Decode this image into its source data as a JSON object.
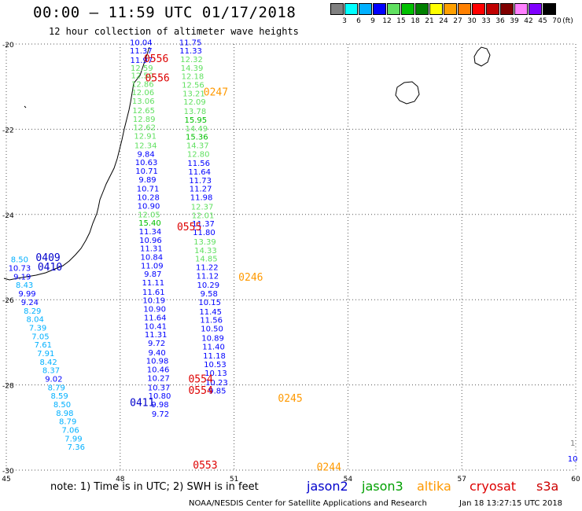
{
  "header": {
    "title": "00:00 — 11:59 UTC 01/17/2018",
    "subtitle": "12 hour collection of altimeter wave heights"
  },
  "colorbar": {
    "unit": "(ft)",
    "colors": [
      "#808080",
      "#00ffff",
      "#00b0ff",
      "#0000ff",
      "#60e060",
      "#00c000",
      "#008000",
      "#ffff00",
      "#ffa000",
      "#ff8000",
      "#ff0000",
      "#c00000",
      "#800000",
      "#ff80ff",
      "#8000ff",
      "#000000"
    ],
    "labels": [
      "3",
      "6",
      "9",
      "12",
      "15",
      "18",
      "21",
      "24",
      "27",
      "30",
      "33",
      "36",
      "39",
      "42",
      "45",
      "70"
    ]
  },
  "axes": {
    "lat_labels": [
      {
        "lat": -20,
        "text": "-20"
      },
      {
        "lat": -22,
        "text": "-22"
      },
      {
        "lat": -24,
        "text": "-24"
      },
      {
        "lat": -26,
        "text": "-26"
      },
      {
        "lat": -28,
        "text": "-28"
      },
      {
        "lat": -30,
        "text": "-30"
      }
    ],
    "lon_labels": [
      {
        "lon": 45,
        "text": "45"
      },
      {
        "lon": 48,
        "text": "48"
      },
      {
        "lon": 51,
        "text": "51"
      },
      {
        "lon": 54,
        "text": "54"
      },
      {
        "lon": 57,
        "text": "57"
      },
      {
        "lon": 60,
        "text": "60"
      }
    ],
    "lat_range": [
      -30,
      -20
    ],
    "lon_range": [
      45,
      60
    ]
  },
  "footer": {
    "note": "note:  1) Time is in UTC;  2) SWH is in feet",
    "credit": "NOAA/NESDIS Center for Satellite Applications and Research",
    "timestamp": "Jan 18 13:27:15 UTC 2018",
    "legend": [
      {
        "name": "jason2",
        "color": "#0000cc"
      },
      {
        "name": "jason3",
        "color": "#00a000"
      },
      {
        "name": "altika",
        "color": "#ff9900"
      },
      {
        "name": "cryosat",
        "color": "#dd0000"
      },
      {
        "name": "s3a",
        "color": "#cc0000"
      }
    ]
  },
  "chart_data": {
    "type": "scatter",
    "tracks": [
      {
        "name": "track-a",
        "points": [
          {
            "lon": 48.55,
            "lat": -19.95,
            "v": "10.04"
          },
          {
            "lon": 48.55,
            "lat": -20.15,
            "v": "11.37"
          },
          {
            "lon": 48.56,
            "lat": -20.37,
            "v": "11.97"
          },
          {
            "lon": 48.57,
            "lat": -20.55,
            "v": "12.59"
          },
          {
            "lon": 48.58,
            "lat": -20.73,
            "v": "12.50"
          },
          {
            "lon": 48.59,
            "lat": -20.93,
            "v": "12.86"
          },
          {
            "lon": 48.6,
            "lat": -21.13,
            "v": "12.06"
          },
          {
            "lon": 48.61,
            "lat": -21.33,
            "v": "13.06"
          },
          {
            "lon": 48.62,
            "lat": -21.55,
            "v": "12.65"
          },
          {
            "lon": 48.63,
            "lat": -21.75,
            "v": "12.89"
          },
          {
            "lon": 48.64,
            "lat": -21.95,
            "v": "12.62"
          },
          {
            "lon": 48.66,
            "lat": -22.15,
            "v": "12.91"
          },
          {
            "lon": 48.67,
            "lat": -22.37,
            "v": "12.34"
          },
          {
            "lon": 48.68,
            "lat": -22.57,
            "v": "9.84"
          },
          {
            "lon": 48.69,
            "lat": -22.77,
            "v": "10.63"
          },
          {
            "lon": 48.7,
            "lat": -22.97,
            "v": "10.71"
          },
          {
            "lon": 48.72,
            "lat": -23.17,
            "v": "9.89"
          },
          {
            "lon": 48.73,
            "lat": -23.39,
            "v": "10.71"
          },
          {
            "lon": 48.74,
            "lat": -23.59,
            "v": "10.28"
          },
          {
            "lon": 48.75,
            "lat": -23.79,
            "v": "10.90"
          },
          {
            "lon": 48.76,
            "lat": -23.99,
            "v": "12.05"
          },
          {
            "lon": 48.78,
            "lat": -24.19,
            "v": "15.40"
          },
          {
            "lon": 48.79,
            "lat": -24.39,
            "v": "11.34"
          },
          {
            "lon": 48.8,
            "lat": -24.59,
            "v": "10.96"
          },
          {
            "lon": 48.82,
            "lat": -24.79,
            "v": "11.31"
          },
          {
            "lon": 48.83,
            "lat": -24.99,
            "v": "10.84"
          },
          {
            "lon": 48.84,
            "lat": -25.19,
            "v": "11.09"
          },
          {
            "lon": 48.86,
            "lat": -25.39,
            "v": "9.87"
          },
          {
            "lon": 48.87,
            "lat": -25.59,
            "v": "11.11"
          },
          {
            "lon": 48.88,
            "lat": -25.81,
            "v": "11.61"
          },
          {
            "lon": 48.89,
            "lat": -26.01,
            "v": "10.19"
          },
          {
            "lon": 48.91,
            "lat": -26.21,
            "v": "10.90"
          },
          {
            "lon": 48.92,
            "lat": -26.41,
            "v": "11.64"
          },
          {
            "lon": 48.93,
            "lat": -26.61,
            "v": "10.41"
          },
          {
            "lon": 48.94,
            "lat": -26.81,
            "v": "11.31"
          },
          {
            "lon": 48.96,
            "lat": -27.01,
            "v": "9.72"
          },
          {
            "lon": 48.97,
            "lat": -27.23,
            "v": "9.40"
          },
          {
            "lon": 48.98,
            "lat": -27.43,
            "v": "10.98"
          },
          {
            "lon": 49.0,
            "lat": -27.63,
            "v": "10.46"
          },
          {
            "lon": 49.01,
            "lat": -27.83,
            "v": "10.27"
          },
          {
            "lon": 49.02,
            "lat": -28.05,
            "v": "10.37"
          },
          {
            "lon": 49.04,
            "lat": -28.25,
            "v": "10.80"
          },
          {
            "lon": 49.05,
            "lat": -28.45,
            "v": "9.98"
          },
          {
            "lon": 49.06,
            "lat": -28.67,
            "v": "9.72"
          }
        ]
      },
      {
        "name": "track-b",
        "points": [
          {
            "lon": 49.85,
            "lat": -19.95,
            "v": "11.75"
          },
          {
            "lon": 49.86,
            "lat": -20.15,
            "v": "11.33"
          },
          {
            "lon": 49.88,
            "lat": -20.35,
            "v": "12.32"
          },
          {
            "lon": 49.89,
            "lat": -20.55,
            "v": "14.39"
          },
          {
            "lon": 49.91,
            "lat": -20.75,
            "v": "12.18"
          },
          {
            "lon": 49.92,
            "lat": -20.95,
            "v": "12.56"
          },
          {
            "lon": 49.94,
            "lat": -21.15,
            "v": "13.21"
          },
          {
            "lon": 49.96,
            "lat": -21.35,
            "v": "12.09"
          },
          {
            "lon": 49.97,
            "lat": -21.57,
            "v": "13.78"
          },
          {
            "lon": 49.99,
            "lat": -21.77,
            "v": "15.95"
          },
          {
            "lon": 50.01,
            "lat": -21.97,
            "v": "14.49"
          },
          {
            "lon": 50.02,
            "lat": -22.17,
            "v": "15.36"
          },
          {
            "lon": 50.04,
            "lat": -22.37,
            "v": "14.37"
          },
          {
            "lon": 50.06,
            "lat": -22.57,
            "v": "12.80"
          },
          {
            "lon": 50.07,
            "lat": -22.79,
            "v": "11.56"
          },
          {
            "lon": 50.09,
            "lat": -22.99,
            "v": "11.64"
          },
          {
            "lon": 50.11,
            "lat": -23.19,
            "v": "11.73"
          },
          {
            "lon": 50.12,
            "lat": -23.39,
            "v": "11.27"
          },
          {
            "lon": 50.14,
            "lat": -23.59,
            "v": "11.98"
          },
          {
            "lon": 50.16,
            "lat": -23.81,
            "v": "12.37"
          },
          {
            "lon": 50.18,
            "lat": -24.01,
            "v": "12.01"
          },
          {
            "lon": 50.19,
            "lat": -24.21,
            "v": "11.37"
          },
          {
            "lon": 50.21,
            "lat": -24.41,
            "v": "11.80"
          },
          {
            "lon": 50.23,
            "lat": -24.63,
            "v": "13.39"
          },
          {
            "lon": 50.25,
            "lat": -24.83,
            "v": "14.33"
          },
          {
            "lon": 50.27,
            "lat": -25.03,
            "v": "14.85"
          },
          {
            "lon": 50.29,
            "lat": -25.23,
            "v": "11.22"
          },
          {
            "lon": 50.3,
            "lat": -25.43,
            "v": "11.12"
          },
          {
            "lon": 50.32,
            "lat": -25.65,
            "v": "10.29"
          },
          {
            "lon": 50.34,
            "lat": -25.85,
            "v": "9.58"
          },
          {
            "lon": 50.36,
            "lat": -26.05,
            "v": "10.15"
          },
          {
            "lon": 50.38,
            "lat": -26.27,
            "v": "11.45"
          },
          {
            "lon": 50.4,
            "lat": -26.47,
            "v": "11.56"
          },
          {
            "lon": 50.42,
            "lat": -26.67,
            "v": "10.50"
          },
          {
            "lon": 50.44,
            "lat": -26.89,
            "v": "10.89"
          },
          {
            "lon": 50.46,
            "lat": -27.09,
            "v": "11.40"
          },
          {
            "lon": 50.48,
            "lat": -27.31,
            "v": "11.18"
          },
          {
            "lon": 50.5,
            "lat": -27.51,
            "v": "10.53"
          },
          {
            "lon": 50.52,
            "lat": -27.71,
            "v": "10.13"
          },
          {
            "lon": 50.54,
            "lat": -27.93,
            "v": "10.23"
          },
          {
            "lon": 50.56,
            "lat": -28.13,
            "v": "9.85"
          }
        ]
      },
      {
        "name": "track-c",
        "points": [
          {
            "lon": 45.35,
            "lat": -25.05,
            "v": "8.50"
          },
          {
            "lon": 45.35,
            "lat": -25.25,
            "v": "10.73"
          },
          {
            "lon": 45.42,
            "lat": -25.45,
            "v": "9.19"
          },
          {
            "lon": 45.48,
            "lat": -25.65,
            "v": "8.43"
          },
          {
            "lon": 45.55,
            "lat": -25.85,
            "v": "9.99"
          },
          {
            "lon": 45.62,
            "lat": -26.05,
            "v": "9.24"
          },
          {
            "lon": 45.69,
            "lat": -26.25,
            "v": "8.29"
          },
          {
            "lon": 45.76,
            "lat": -26.45,
            "v": "8.04"
          },
          {
            "lon": 45.83,
            "lat": -26.65,
            "v": "7.39"
          },
          {
            "lon": 45.9,
            "lat": -26.85,
            "v": "7.05"
          },
          {
            "lon": 45.97,
            "lat": -27.05,
            "v": "7.61"
          },
          {
            "lon": 46.04,
            "lat": -27.25,
            "v": "7.91"
          },
          {
            "lon": 46.11,
            "lat": -27.45,
            "v": "8.42"
          },
          {
            "lon": 46.18,
            "lat": -27.65,
            "v": "8.37"
          },
          {
            "lon": 46.25,
            "lat": -27.85,
            "v": "9.02"
          },
          {
            "lon": 46.32,
            "lat": -28.05,
            "v": "8.79"
          },
          {
            "lon": 46.4,
            "lat": -28.25,
            "v": "8.59"
          },
          {
            "lon": 46.47,
            "lat": -28.45,
            "v": "8.50"
          },
          {
            "lon": 46.54,
            "lat": -28.65,
            "v": "8.98"
          },
          {
            "lon": 46.62,
            "lat": -28.85,
            "v": "8.79"
          },
          {
            "lon": 46.69,
            "lat": -29.05,
            "v": "7.06"
          },
          {
            "lon": 46.77,
            "lat": -29.25,
            "v": "7.99"
          },
          {
            "lon": 46.84,
            "lat": -29.45,
            "v": "7.36"
          }
        ]
      },
      {
        "name": "edge-right",
        "points": [
          {
            "lon": 59.92,
            "lat": -29.35,
            "v": "1"
          },
          {
            "lon": 59.92,
            "lat": -29.72,
            "v": "10"
          }
        ]
      }
    ],
    "time_labels": [
      {
        "lon": 48.95,
        "lat": -20.33,
        "text": "0556",
        "color": "#dd0000"
      },
      {
        "lon": 48.98,
        "lat": -20.78,
        "text": "0556",
        "color": "#dd0000"
      },
      {
        "lon": 50.52,
        "lat": -21.12,
        "text": "0247",
        "color": "#ff9900"
      },
      {
        "lon": 49.82,
        "lat": -24.28,
        "text": "0555",
        "color": "#dd0000"
      },
      {
        "lon": 51.44,
        "lat": -25.46,
        "text": "0246",
        "color": "#ff9900"
      },
      {
        "lon": 46.1,
        "lat": -25.0,
        "text": "0409",
        "color": "#0000cc"
      },
      {
        "lon": 46.15,
        "lat": -25.22,
        "text": "0410",
        "color": "#0000cc"
      },
      {
        "lon": 48.58,
        "lat": -28.4,
        "text": "0411",
        "color": "#0000cc"
      },
      {
        "lon": 50.12,
        "lat": -27.85,
        "text": "0554",
        "color": "#dd0000"
      },
      {
        "lon": 50.12,
        "lat": -28.12,
        "text": "0554",
        "color": "#dd0000"
      },
      {
        "lon": 52.48,
        "lat": -28.3,
        "text": "0245",
        "color": "#ff9900"
      },
      {
        "lon": 50.24,
        "lat": -29.87,
        "text": "0553",
        "color": "#dd0000"
      },
      {
        "lon": 53.5,
        "lat": -29.92,
        "text": "0244",
        "color": "#ff9900"
      }
    ]
  }
}
